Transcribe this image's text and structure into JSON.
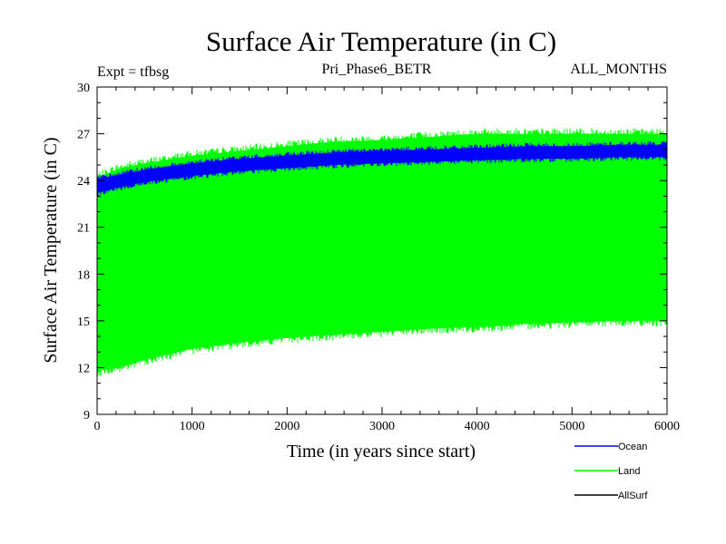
{
  "chart_data": {
    "type": "line",
    "title": "Surface Air Temperature (in C)",
    "subtitle_left": "Expt = tfbsg",
    "subtitle_center": "Pri_Phase6_BETR",
    "subtitle_right": "ALL_MONTHS",
    "xlabel": "Time (in years since start)",
    "ylabel": "Surface Air Temperature (in C)",
    "xlim": [
      0,
      6000
    ],
    "ylim": [
      9,
      30
    ],
    "x_ticks": [
      "0",
      "1000",
      "2000",
      "3000",
      "4000",
      "5000",
      "6000"
    ],
    "y_ticks": [
      "9",
      "12",
      "15",
      "18",
      "21",
      "24",
      "27",
      "30"
    ],
    "grid": false,
    "legend_position": "bottom-right, below plot",
    "series": [
      {
        "name": "Land",
        "color": "#00ff00",
        "style": "seasonal envelope (high-frequency oscillation)",
        "x": [
          0,
          250,
          500,
          1000,
          1500,
          2000,
          2500,
          3000,
          3500,
          4000,
          4500,
          5000,
          5500,
          6000
        ],
        "upper": [
          24.2,
          24.8,
          25.1,
          25.6,
          25.9,
          26.2,
          26.5,
          26.6,
          26.8,
          27.0,
          27.0,
          27.0,
          27.0,
          27.0
        ],
        "lower": [
          11.8,
          12.0,
          12.5,
          13.2,
          13.6,
          13.9,
          14.1,
          14.3,
          14.5,
          14.6,
          14.8,
          14.9,
          15.0,
          15.0
        ]
      },
      {
        "name": "Ocean",
        "color": "#0000ff",
        "style": "seasonal envelope (high-frequency oscillation)",
        "x": [
          0,
          250,
          500,
          1000,
          1500,
          2000,
          2500,
          3000,
          3500,
          4000,
          4500,
          5000,
          5500,
          6000
        ],
        "upper": [
          24.1,
          24.4,
          24.7,
          25.1,
          25.4,
          25.6,
          25.8,
          25.9,
          26.0,
          26.1,
          26.2,
          26.2,
          26.3,
          26.3
        ],
        "lower": [
          23.2,
          23.6,
          23.9,
          24.3,
          24.6,
          24.8,
          25.0,
          25.1,
          25.2,
          25.3,
          25.4,
          25.4,
          25.5,
          25.5
        ]
      },
      {
        "name": "AllSurf",
        "color": "#000000",
        "style": "not visible in plot area",
        "x": [],
        "values": []
      }
    ],
    "legend": [
      {
        "label": "Ocean",
        "color": "#0000ff"
      },
      {
        "label": "Land",
        "color": "#00ff00"
      },
      {
        "label": "AllSurf",
        "color": "#000000"
      }
    ]
  }
}
